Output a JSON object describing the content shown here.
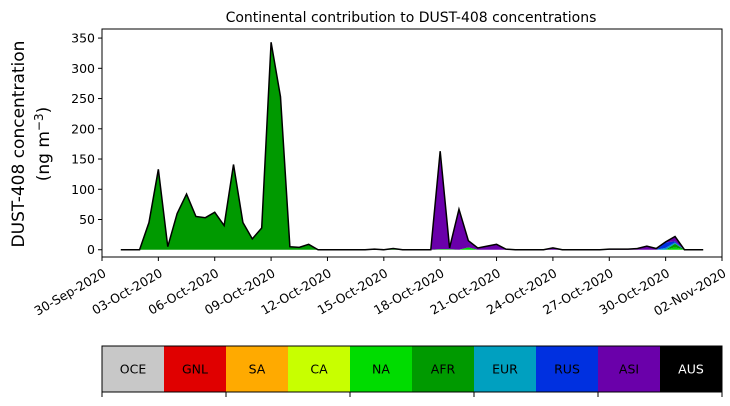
{
  "chart_data": {
    "type": "area",
    "stacked": true,
    "title": "Continental contribution to DUST-408 concentrations",
    "ylabel_line1": "DUST-408 concentration",
    "ylabel_line2_prefix": "(ng m",
    "ylabel_line2_sup": "−3",
    "ylabel_line2_suffix": ")",
    "xlabel": "",
    "ylim": [
      -12,
      365
    ],
    "yticks": [
      0,
      50,
      100,
      150,
      200,
      250,
      300,
      350
    ],
    "x_start_date": "2020-09-30",
    "x_end_date": "2020-11-02",
    "x_tick_labels": [
      "30-Sep-2020",
      "03-Oct-2020",
      "06-Oct-2020",
      "09-Oct-2020",
      "12-Oct-2020",
      "15-Oct-2020",
      "18-Oct-2020",
      "21-Oct-2020",
      "24-Oct-2020",
      "27-Oct-2020",
      "30-Oct-2020",
      "02-Nov-2020"
    ],
    "x_tick_dates": [
      "2020-09-30",
      "2020-10-03",
      "2020-10-06",
      "2020-10-09",
      "2020-10-12",
      "2020-10-15",
      "2020-10-18",
      "2020-10-21",
      "2020-10-24",
      "2020-10-27",
      "2020-10-30",
      "2020-11-02"
    ],
    "dates": [
      "2020-10-01",
      "2020-10-01T12:00",
      "2020-10-02",
      "2020-10-02T12:00",
      "2020-10-03",
      "2020-10-03T12:00",
      "2020-10-04",
      "2020-10-04T12:00",
      "2020-10-05",
      "2020-10-05T12:00",
      "2020-10-06",
      "2020-10-06T12:00",
      "2020-10-07",
      "2020-10-07T12:00",
      "2020-10-08",
      "2020-10-08T12:00",
      "2020-10-09",
      "2020-10-09T12:00",
      "2020-10-10",
      "2020-10-10T12:00",
      "2020-10-11",
      "2020-10-11T12:00",
      "2020-10-12",
      "2020-10-12T12:00",
      "2020-10-13",
      "2020-10-13T12:00",
      "2020-10-14",
      "2020-10-14T12:00",
      "2020-10-15",
      "2020-10-15T12:00",
      "2020-10-16",
      "2020-10-16T12:00",
      "2020-10-17",
      "2020-10-17T12:00",
      "2020-10-18",
      "2020-10-18T12:00",
      "2020-10-19",
      "2020-10-19T12:00",
      "2020-10-20",
      "2020-10-20T12:00",
      "2020-10-21",
      "2020-10-21T12:00",
      "2020-10-22",
      "2020-10-22T12:00",
      "2020-10-23",
      "2020-10-23T12:00",
      "2020-10-24",
      "2020-10-24T12:00",
      "2020-10-25",
      "2020-10-25T12:00",
      "2020-10-26",
      "2020-10-26T12:00",
      "2020-10-27",
      "2020-10-27T12:00",
      "2020-10-28",
      "2020-10-28T12:00",
      "2020-10-29",
      "2020-10-29T12:00",
      "2020-10-30",
      "2020-10-30T12:00",
      "2020-10-31",
      "2020-10-31T12:00",
      "2020-11-01"
    ],
    "series": [
      {
        "name": "OCE",
        "color": "#c8c8c8",
        "values": [
          0,
          0,
          0,
          0,
          0,
          0,
          0,
          0,
          0,
          0,
          0,
          0,
          0,
          0,
          0,
          0,
          0,
          0,
          0,
          0,
          0,
          0,
          0,
          0,
          0,
          0,
          0,
          0,
          0,
          0,
          0,
          0,
          0,
          0,
          0,
          0,
          0,
          0,
          0,
          0,
          0,
          0,
          0,
          0,
          0,
          0,
          0,
          0,
          0,
          0,
          0,
          0,
          0,
          0,
          0,
          0,
          0,
          0,
          0,
          0,
          0,
          0,
          0
        ]
      },
      {
        "name": "GNL",
        "color": "#e00000",
        "values": [
          0,
          0,
          0,
          0,
          0,
          0,
          0,
          0,
          0,
          0,
          0,
          0,
          0,
          0,
          0,
          0,
          0,
          0,
          0,
          0,
          0,
          0,
          0,
          0,
          0,
          0,
          0,
          0,
          0,
          0,
          0,
          0,
          0,
          0,
          0,
          0,
          0,
          0,
          0,
          0,
          0,
          0,
          0,
          0,
          0,
          0,
          0,
          0,
          0,
          0,
          0,
          0,
          0,
          0,
          0,
          0,
          0,
          0,
          0,
          0,
          0,
          0,
          0
        ]
      },
      {
        "name": "SA",
        "color": "#ffaa00",
        "values": [
          0,
          0,
          0,
          0,
          0,
          0,
          0,
          0,
          0,
          0,
          0,
          0,
          0,
          0,
          0,
          0,
          0,
          0,
          0,
          0,
          0,
          0,
          0,
          0,
          0,
          0,
          0,
          0,
          0,
          0,
          0,
          0,
          0,
          0,
          0,
          0,
          0,
          0,
          0,
          0,
          0,
          0,
          0,
          0,
          0,
          0,
          0,
          0,
          0,
          0,
          0,
          0,
          0,
          0,
          0,
          0,
          0,
          0,
          0,
          0,
          0,
          0,
          0
        ]
      },
      {
        "name": "CA",
        "color": "#c8ff00",
        "values": [
          0,
          0,
          0,
          0,
          0,
          0,
          0,
          0,
          0,
          0,
          0,
          0,
          0,
          0,
          0,
          0,
          0,
          0,
          0,
          0,
          0,
          0,
          0,
          0,
          0,
          0,
          0,
          0,
          0,
          0,
          0,
          0,
          0,
          0,
          0,
          0,
          0,
          0,
          0,
          0,
          0,
          0,
          0,
          0,
          0,
          0,
          0,
          0,
          0,
          0,
          0,
          0,
          0,
          0,
          0,
          0,
          0,
          0,
          0,
          0,
          0,
          0,
          0
        ]
      },
      {
        "name": "NA",
        "color": "#00dc00",
        "values": [
          0,
          0,
          0,
          0,
          0,
          0,
          0,
          0,
          0,
          0,
          0,
          0,
          0,
          0,
          0,
          0,
          0,
          0,
          0,
          0,
          0,
          0,
          0,
          0,
          0,
          0,
          0,
          0,
          0,
          0,
          0,
          0,
          0,
          0,
          1,
          1,
          0,
          4,
          0,
          0,
          0,
          0,
          0,
          0,
          0,
          0,
          0,
          0,
          0,
          0,
          0,
          0,
          0,
          0,
          0,
          0,
          0,
          0,
          0,
          4,
          0,
          0,
          0
        ]
      },
      {
        "name": "AFR",
        "color": "#009a00",
        "values": [
          0,
          0,
          0,
          45,
          133,
          5,
          60,
          92,
          55,
          53,
          62,
          40,
          141,
          45,
          18,
          36,
          343,
          253,
          5,
          4,
          9,
          0,
          0,
          0,
          0,
          0,
          0,
          0,
          0,
          2,
          0,
          0,
          0,
          0,
          0,
          0,
          0,
          0,
          0,
          0,
          0,
          0,
          0,
          0,
          0,
          0,
          0,
          0,
          0,
          0,
          0,
          0,
          0,
          0,
          0,
          0,
          0,
          0,
          0,
          6,
          0,
          0,
          0
        ]
      },
      {
        "name": "EUR",
        "color": "#00a0c0",
        "values": [
          0,
          0,
          0,
          0,
          0,
          0,
          0,
          0,
          0,
          0,
          0,
          0,
          0,
          0,
          0,
          0,
          0,
          0,
          0,
          0,
          0,
          0,
          0,
          0,
          0,
          0,
          0,
          0,
          0,
          0,
          0,
          0,
          0,
          0,
          0,
          0,
          0,
          0,
          0,
          0,
          0,
          0,
          0,
          0,
          0,
          0,
          0,
          0,
          0,
          0,
          0,
          0,
          0,
          0,
          0,
          0,
          0,
          0,
          3,
          2,
          0,
          0,
          0
        ]
      },
      {
        "name": "RUS",
        "color": "#0030e0",
        "values": [
          0,
          0,
          0,
          0,
          0,
          0,
          0,
          0,
          0,
          0,
          0,
          0,
          0,
          0,
          0,
          0,
          0,
          0,
          0,
          0,
          0,
          0,
          0,
          0,
          0,
          0,
          0,
          0,
          0,
          0,
          0,
          0,
          0,
          0,
          0,
          0,
          0,
          0,
          0,
          0,
          0,
          0,
          0,
          0,
          0,
          0,
          0,
          0,
          0,
          0,
          0,
          0,
          0,
          0,
          0,
          0,
          0,
          0,
          9,
          2,
          0,
          0,
          0
        ]
      },
      {
        "name": "ASI",
        "color": "#6a00aa",
        "values": [
          0,
          0,
          0,
          0,
          0,
          0,
          0,
          0,
          0,
          0,
          0,
          0,
          0,
          0,
          0,
          0,
          0,
          0,
          0,
          0,
          0,
          0,
          0,
          0,
          0,
          0,
          0,
          1,
          0,
          0,
          0,
          0,
          0,
          0,
          162,
          2,
          67,
          11,
          3,
          6,
          9,
          1,
          0,
          0,
          0,
          0,
          3,
          0,
          0,
          0,
          0,
          0,
          1,
          1,
          1,
          2,
          6,
          2,
          1,
          8,
          0,
          0,
          0
        ]
      },
      {
        "name": "AUS",
        "color": "#000000",
        "values": [
          0,
          0,
          0,
          0,
          0,
          0,
          0,
          0,
          0,
          0,
          0,
          0,
          0,
          0,
          0,
          0,
          0,
          0,
          0,
          0,
          0,
          0,
          0,
          0,
          0,
          0,
          0,
          0,
          0,
          0,
          0,
          0,
          0,
          0,
          0,
          0,
          0,
          0,
          0,
          0,
          0,
          0,
          0,
          0,
          0,
          0,
          0,
          0,
          0,
          0,
          0,
          0,
          0,
          0,
          0,
          0,
          0,
          0,
          0,
          0,
          0,
          0,
          0
        ]
      }
    ],
    "legend": [
      {
        "label": "OCE",
        "color": "#c8c8c8",
        "text_color": "#000000"
      },
      {
        "label": "GNL",
        "color": "#e00000",
        "text_color": "#000000"
      },
      {
        "label": "SA",
        "color": "#ffaa00",
        "text_color": "#000000"
      },
      {
        "label": "CA",
        "color": "#c8ff00",
        "text_color": "#000000"
      },
      {
        "label": "NA",
        "color": "#00dc00",
        "text_color": "#000000"
      },
      {
        "label": "AFR",
        "color": "#009a00",
        "text_color": "#000000"
      },
      {
        "label": "EUR",
        "color": "#00a0c0",
        "text_color": "#000000"
      },
      {
        "label": "RUS",
        "color": "#0030e0",
        "text_color": "#000000"
      },
      {
        "label": "ASI",
        "color": "#6a00aa",
        "text_color": "#000000"
      },
      {
        "label": "AUS",
        "color": "#000000",
        "text_color": "#ffffff"
      }
    ],
    "legend_placement": "bottom colorbar"
  }
}
